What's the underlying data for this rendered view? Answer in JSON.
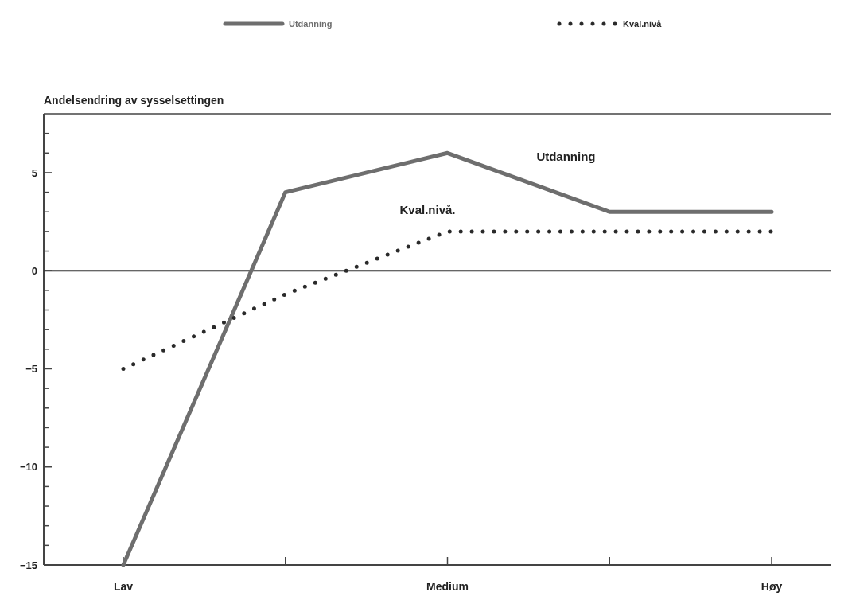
{
  "chart_data": {
    "type": "line",
    "ylabel": "Andelsendring av sysselsettingen",
    "categories": [
      "Lav",
      null,
      "Medium",
      null,
      "Høy"
    ],
    "series": [
      {
        "name": "Utdanning",
        "color": "#6e6e6e",
        "line_style": "solid",
        "values": [
          -15,
          4.0,
          6.0,
          3.0,
          3.0
        ]
      },
      {
        "name": "Kval.nivå",
        "color": "#2a2a2a",
        "line_style": "dotted",
        "values": [
          -5.0,
          -1.2,
          2.0,
          2.0,
          2.0
        ]
      }
    ],
    "annotations": [
      "Utdanning",
      "Kval.nivå."
    ],
    "ylim": [
      -15,
      8
    ],
    "yticks": [
      -15,
      {
        "value": -14,
        "label": null
      },
      {
        "value": -13,
        "label": null
      },
      {
        "value": -12,
        "label": null
      },
      {
        "value": -11,
        "label": null
      },
      -10,
      {
        "value": -9,
        "label": null
      },
      {
        "value": -8,
        "label": null
      },
      {
        "value": -7,
        "label": null
      },
      {
        "value": -6,
        "label": null
      },
      -5,
      {
        "value": -4,
        "label": null
      },
      {
        "value": -3,
        "label": null
      },
      {
        "value": -2,
        "label": null
      },
      {
        "value": -1,
        "label": null
      },
      0,
      {
        "value": 1,
        "label": null
      },
      {
        "value": 2,
        "label": null
      },
      {
        "value": 3,
        "label": null
      },
      {
        "value": 4,
        "label": null
      },
      5,
      {
        "value": 6,
        "label": null
      },
      {
        "value": 7,
        "label": null
      }
    ],
    "ref_lines": [
      {
        "axis": "y",
        "value": 0,
        "color": "#333333"
      }
    ],
    "legend": "top"
  }
}
